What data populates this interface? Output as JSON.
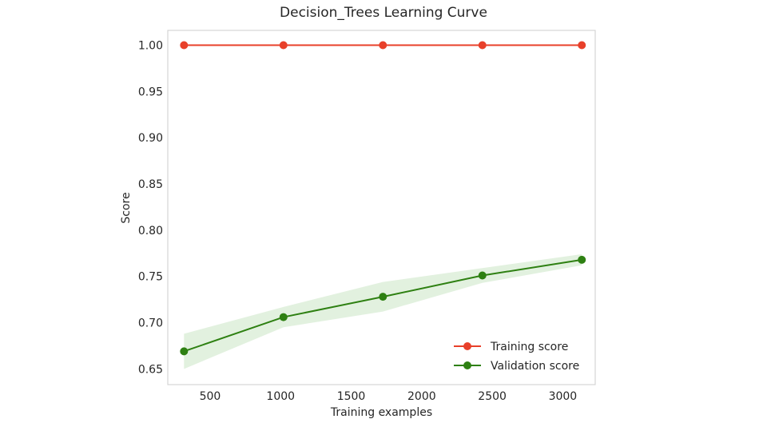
{
  "chart_data": {
    "type": "line",
    "title": "Decision_Trees Learning Curve",
    "xlabel": "Training examples",
    "ylabel": "Score",
    "xlim": [
      200,
      3230
    ],
    "ylim": [
      0.633,
      1.016
    ],
    "xticks": [
      500,
      1000,
      1500,
      2000,
      2500,
      3000
    ],
    "yticks": [
      0.65,
      0.7,
      0.75,
      0.8,
      0.85,
      0.9,
      0.95,
      1.0
    ],
    "ytick_labels": [
      "0.65",
      "0.70",
      "0.75",
      "0.80",
      "0.85",
      "0.90",
      "0.95",
      "1.00"
    ],
    "grid": false,
    "legend_position": "lower-right",
    "x": [
      315,
      1020,
      1725,
      2430,
      3135
    ],
    "series": [
      {
        "name": "Training score",
        "color": "#e8402a",
        "values": [
          1.0,
          1.0,
          1.0,
          1.0,
          1.0
        ],
        "band_lower": [
          1.0,
          1.0,
          1.0,
          1.0,
          1.0
        ],
        "band_upper": [
          1.0,
          1.0,
          1.0,
          1.0,
          1.0
        ]
      },
      {
        "name": "Validation score",
        "color": "#2e8012",
        "band_color": "#d6ebd1",
        "values": [
          0.669,
          0.706,
          0.728,
          0.751,
          0.768
        ],
        "band_lower": [
          0.65,
          0.695,
          0.712,
          0.743,
          0.762
        ],
        "band_upper": [
          0.688,
          0.717,
          0.744,
          0.759,
          0.774
        ]
      }
    ]
  }
}
